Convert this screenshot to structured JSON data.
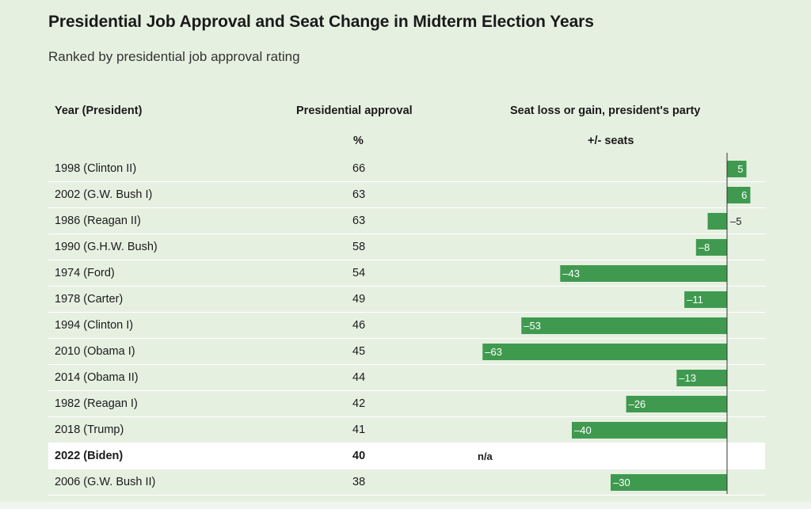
{
  "title": "Presidential Job Approval and Seat Change in Midterm Election Years",
  "subtitle": "Ranked by presidential job approval rating",
  "headers": {
    "year": "Year (President)",
    "approval": "Presidential approval",
    "approval_unit": "%",
    "seats": "Seat loss or gain, president's party",
    "seats_unit": "+/- seats"
  },
  "chart_data": {
    "type": "bar",
    "orientation": "horizontal",
    "categories": [
      "1998 (Clinton II)",
      "2002 (G.W. Bush I)",
      "1986 (Reagan II)",
      "1990 (G.H.W. Bush)",
      "1974 (Ford)",
      "1978 (Carter)",
      "1994 (Clinton I)",
      "2010 (Obama I)",
      "2014 (Obama II)",
      "1982 (Reagan I)",
      "2018 (Trump)",
      "2022 (Biden)",
      "2006 (G.W. Bush II)"
    ],
    "approval": [
      66,
      63,
      63,
      58,
      54,
      49,
      46,
      45,
      44,
      42,
      41,
      40,
      38
    ],
    "values": [
      5,
      6,
      -5,
      -8,
      -43,
      -11,
      -53,
      -63,
      -13,
      -26,
      -40,
      null,
      -30
    ],
    "labels": [
      "5",
      "6",
      "–5",
      "–8",
      "–43",
      "–11",
      "–53",
      "–63",
      "–13",
      "–26",
      "–40",
      "n/a",
      "–30"
    ],
    "highlighted": "2022 (Biden)",
    "bar_color": "#3f9a50"
  },
  "colors": {
    "background": "#e6f0e1",
    "highlight_row": "#ffffff"
  }
}
